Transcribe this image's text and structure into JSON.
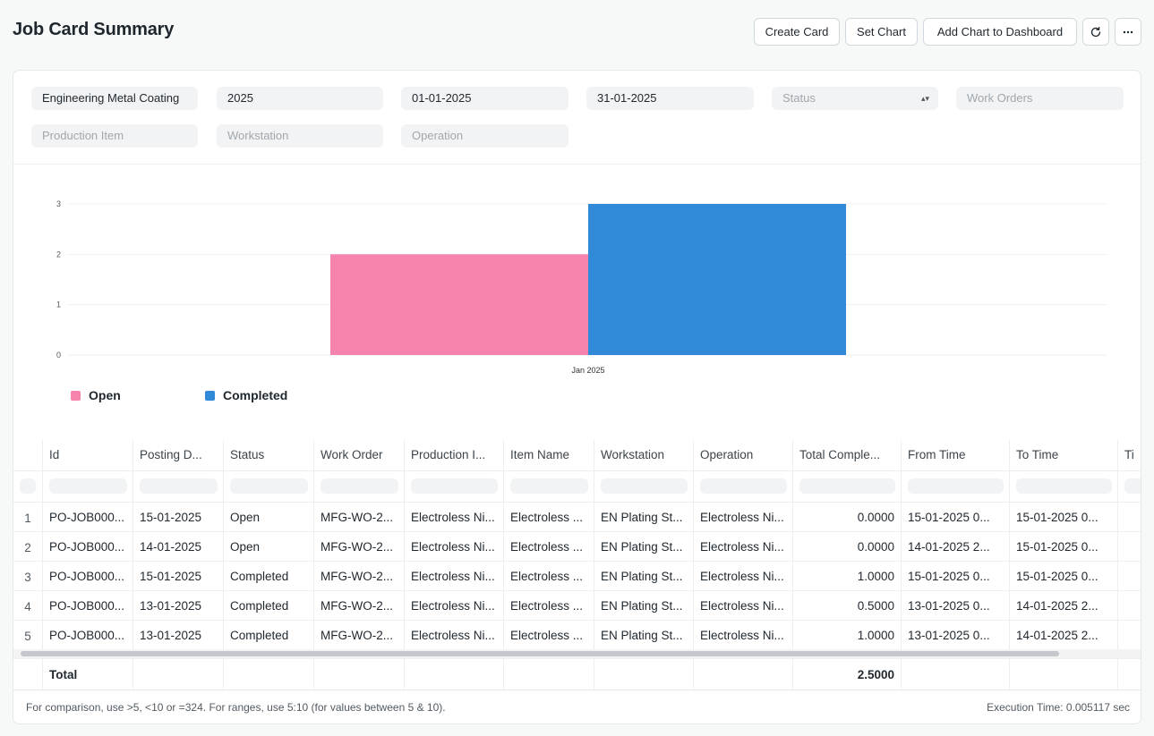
{
  "header": {
    "title": "Job Card Summary",
    "buttons": {
      "create_card": "Create Card",
      "set_chart": "Set Chart",
      "add_chart": "Add Chart to Dashboard"
    },
    "icons": {
      "refresh": "refresh-icon",
      "more": "ellipsis-icon"
    }
  },
  "filters": {
    "company": "Engineering Metal Coating",
    "fiscal_year": "2025",
    "from_date": "01-01-2025",
    "to_date": "31-01-2025",
    "status_placeholder": "Status",
    "work_orders_placeholder": "Work Orders",
    "production_item_placeholder": "Production Item",
    "workstation_placeholder": "Workstation",
    "operation_placeholder": "Operation"
  },
  "chart_data": {
    "type": "bar",
    "categories": [
      "Jan 2025"
    ],
    "series": [
      {
        "name": "Open",
        "values": [
          2
        ],
        "color": "#f683ae"
      },
      {
        "name": "Completed",
        "values": [
          3
        ],
        "color": "#318ad8"
      }
    ],
    "y_ticks": [
      0,
      1,
      2,
      3
    ],
    "ylim": [
      0,
      3
    ],
    "grid": true,
    "legend_position": "bottom-left"
  },
  "table": {
    "columns": [
      "Id",
      "Posting D...",
      "Status",
      "Work Order",
      "Production I...",
      "Item Name",
      "Workstation",
      "Operation",
      "Total Comple...",
      "From Time",
      "To Time",
      "Ti"
    ],
    "rows": [
      {
        "idx": "1",
        "cells": [
          "PO-JOB000...",
          "15-01-2025",
          "Open",
          "MFG-WO-2...",
          "Electroless Ni...",
          "Electroless ...",
          "EN Plating St...",
          "Electroless Ni...",
          "0.0000",
          "15-01-2025 0...",
          "15-01-2025 0...",
          ""
        ]
      },
      {
        "idx": "2",
        "cells": [
          "PO-JOB000...",
          "14-01-2025",
          "Open",
          "MFG-WO-2...",
          "Electroless Ni...",
          "Electroless ...",
          "EN Plating St...",
          "Electroless Ni...",
          "0.0000",
          "14-01-2025 2...",
          "15-01-2025 0...",
          ""
        ]
      },
      {
        "idx": "3",
        "cells": [
          "PO-JOB000...",
          "15-01-2025",
          "Completed",
          "MFG-WO-2...",
          "Electroless Ni...",
          "Electroless ...",
          "EN Plating St...",
          "Electroless Ni...",
          "1.0000",
          "15-01-2025 0...",
          "15-01-2025 0...",
          ""
        ]
      },
      {
        "idx": "4",
        "cells": [
          "PO-JOB000...",
          "13-01-2025",
          "Completed",
          "MFG-WO-2...",
          "Electroless Ni...",
          "Electroless ...",
          "EN Plating St...",
          "Electroless Ni...",
          "0.5000",
          "13-01-2025 0...",
          "14-01-2025 2...",
          ""
        ]
      },
      {
        "idx": "5",
        "cells": [
          "PO-JOB000...",
          "13-01-2025",
          "Completed",
          "MFG-WO-2...",
          "Electroless Ni...",
          "Electroless ...",
          "EN Plating St...",
          "Electroless Ni...",
          "1.0000",
          "13-01-2025 0...",
          "14-01-2025 2...",
          ""
        ]
      }
    ],
    "total_label": "Total",
    "total_value": "2.5000"
  },
  "footer": {
    "hint": "For comparison, use >5, <10 or =324. For ranges, use 5:10 (for values between 5 & 10).",
    "execution_time": "Execution Time: 0.005117 sec"
  }
}
